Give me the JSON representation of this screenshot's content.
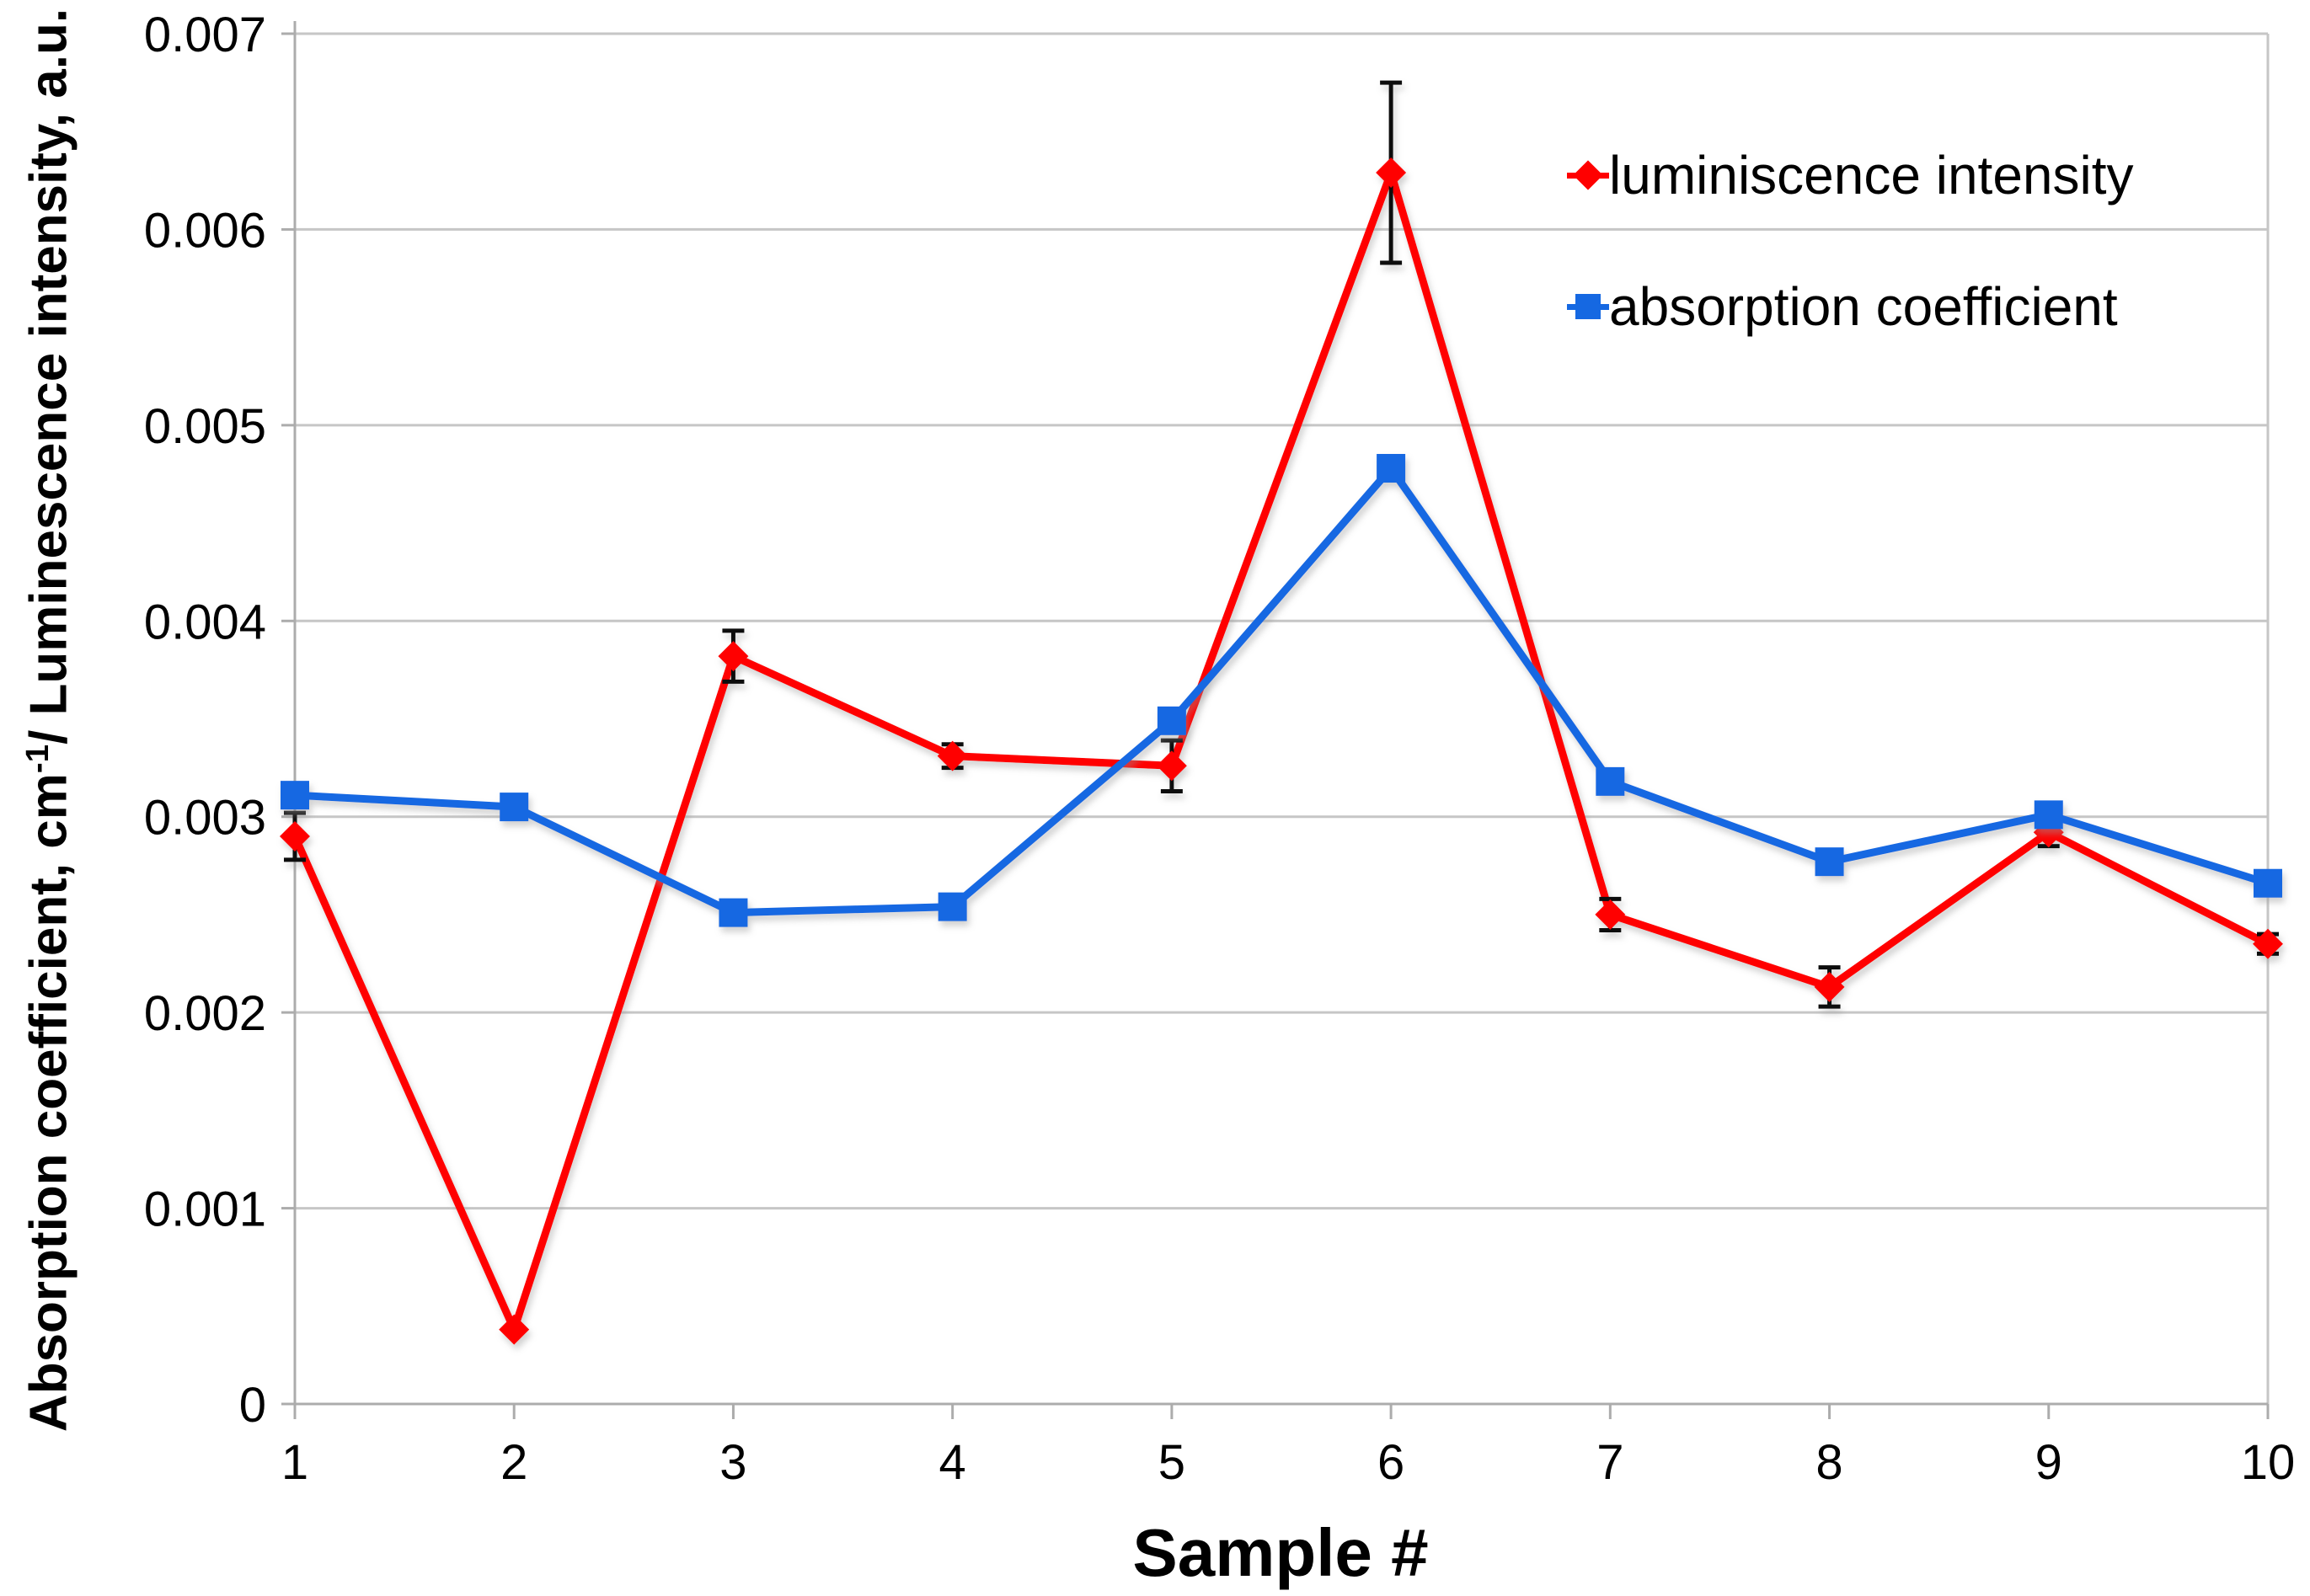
{
  "page": {
    "background": "#FFFFFF"
  },
  "chart_data": {
    "type": "line",
    "title": "",
    "xlabel": "Sample #",
    "ylabel": {
      "pre": "Absorption coefficient, cm",
      "sup": "-1",
      "post": "/ Luminescence intensity, a.u."
    },
    "x_categories": [
      "1",
      "2",
      "3",
      "4",
      "5",
      "6",
      "7",
      "8",
      "9",
      "10"
    ],
    "y_tick_labels": [
      "0",
      "0.001",
      "0.002",
      "0.003",
      "0.004",
      "0.005",
      "0.006",
      "0.007"
    ],
    "y_tick_values": [
      0,
      0.001,
      0.002,
      0.003,
      0.004,
      0.005,
      0.006,
      0.007
    ],
    "ylim": [
      0,
      0.007
    ],
    "grid": "horizontal",
    "legend_position": "inside-top-right",
    "grid_color": "#C6C6C6",
    "axis_color": "#ACACAC",
    "error_bar_color": "#111111",
    "series": [
      {
        "name": "luminiscence intensity",
        "color": "#FF0000",
        "marker": "diamond",
        "values": [
          0.0029,
          0.00038,
          0.00382,
          0.00331,
          0.00326,
          0.00629,
          0.0025,
          0.00213,
          0.00292,
          0.00235
        ],
        "error_bars": [
          0.00012,
          0,
          0.00013,
          6e-05,
          0.00013,
          0.00046,
          8e-05,
          0.0001,
          7e-05,
          5e-05
        ]
      },
      {
        "name": "absorption coefficient",
        "color": "#1568E2",
        "marker": "square",
        "values": [
          0.00311,
          0.00305,
          0.00251,
          0.00254,
          0.00349,
          0.00478,
          0.00318,
          0.00277,
          0.00301,
          0.00266
        ],
        "error_bars": [
          0,
          0,
          0,
          0,
          0,
          0,
          0,
          0,
          0,
          0
        ]
      }
    ]
  }
}
